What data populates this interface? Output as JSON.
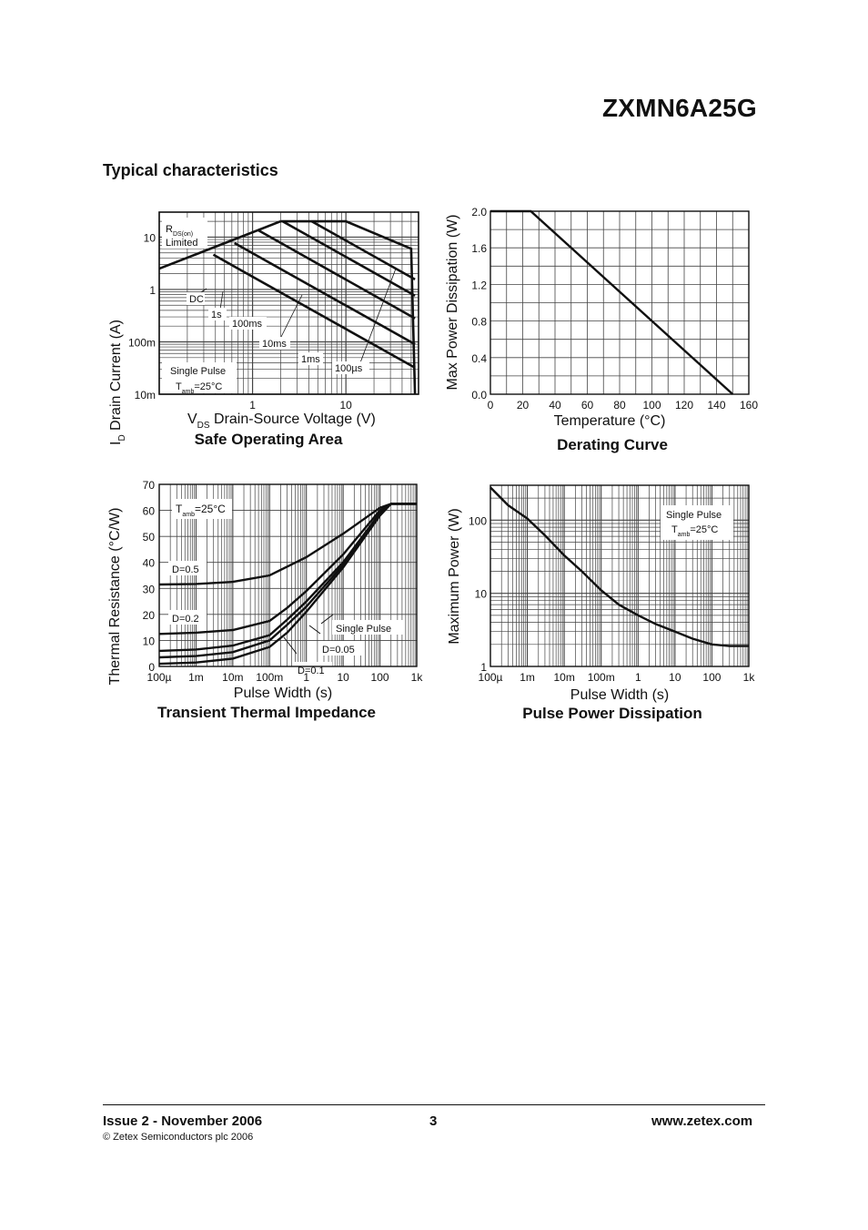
{
  "header": {
    "part_number": "ZXMN6A25G"
  },
  "section_title": "Typical characteristics",
  "charts": {
    "soa": {
      "caption": "Safe Operating Area",
      "y_ticks": [
        "10",
        "1",
        "100m",
        "10m"
      ],
      "x_ticks": [
        "1",
        "10"
      ],
      "xlabel": {
        "main": "V",
        "sub": "DS",
        "rest": " Drain-Source Voltage (V)"
      },
      "ylabel": {
        "main": "I",
        "sub": "D",
        "rest": " Drain Current (A)"
      },
      "rds_label": {
        "main": "R",
        "sub": "DS(on)"
      },
      "limited_label": "Limited",
      "curve_labels": [
        "DC",
        "1s",
        "100ms",
        "10ms",
        "1ms",
        "100µs"
      ],
      "single_pulse": "Single Pulse",
      "tamb": {
        "main": "T",
        "sub": "amb",
        "rest": "=25°C"
      }
    },
    "derating": {
      "caption": "Derating Curve",
      "y_ticks": [
        "2.0",
        "1.6",
        "1.2",
        "0.8",
        "0.4",
        "0.0"
      ],
      "x_ticks": [
        "0",
        "20",
        "40",
        "60",
        "80",
        "100",
        "120",
        "140",
        "160"
      ],
      "xlabel": "Temperature (°C)",
      "ylabel": "Max Power Dissipation (W)"
    },
    "transient": {
      "caption": "Transient Thermal Impedance",
      "y_ticks": [
        "70",
        "60",
        "50",
        "40",
        "30",
        "20",
        "10",
        "0"
      ],
      "x_ticks": [
        "100µ",
        "1m",
        "10m",
        "100m",
        "1",
        "10",
        "100",
        "1k"
      ],
      "xlabel": "Pulse Width (s)",
      "ylabel": "Thermal Resistance (°C/W)",
      "tamb": {
        "main": "T",
        "sub": "amb",
        "rest": "=25°C"
      },
      "curve_labels": [
        "D=0.5",
        "D=0.2",
        "Single Pulse",
        "D=0.05",
        "D=0.1"
      ]
    },
    "pulse": {
      "caption": "Pulse Power Dissipation",
      "y_ticks": [
        "100",
        "10",
        "1"
      ],
      "x_ticks": [
        "100µ",
        "1m",
        "10m",
        "100m",
        "1",
        "10",
        "100",
        "1k"
      ],
      "xlabel": "Pulse Width (s)",
      "ylabel": "Maximum Power (W)",
      "single_pulse": "Single Pulse",
      "tamb": {
        "main": "T",
        "sub": "amb",
        "rest": "=25°C"
      }
    }
  },
  "chart_data": [
    {
      "type": "line",
      "title": "Safe Operating Area",
      "xlabel": "VDS Drain-Source Voltage (V)",
      "ylabel": "ID Drain Current (A)",
      "xscale": "log",
      "yscale": "log",
      "xlim": [
        0.1,
        60
      ],
      "ylim": [
        0.01,
        30
      ],
      "grid": true,
      "series": [
        {
          "name": "RDS(on) Limited",
          "x": [
            0.1,
            2.0
          ],
          "y": [
            2.5,
            20
          ]
        },
        {
          "name": "DC",
          "x": [
            0.38,
            55
          ],
          "y": [
            4.6,
            0.032
          ]
        },
        {
          "name": "1s",
          "x": [
            0.64,
            55
          ],
          "y": [
            7.7,
            0.09
          ]
        },
        {
          "name": "100ms",
          "x": [
            1.15,
            55
          ],
          "y": [
            13.5,
            0.28
          ]
        },
        {
          "name": "10ms",
          "x": [
            2.1,
            55
          ],
          "y": [
            20,
            0.76
          ]
        },
        {
          "name": "1ms",
          "x": [
            4.3,
            55
          ],
          "y": [
            20,
            1.56
          ]
        },
        {
          "name": "100µs",
          "x": [
            2.0,
            10,
            50,
            55
          ],
          "y": [
            20,
            20,
            6,
            0.01
          ]
        }
      ]
    },
    {
      "type": "line",
      "title": "Derating Curve",
      "xlabel": "Temperature (°C)",
      "ylabel": "Max Power Dissipation (W)",
      "xlim": [
        0,
        160
      ],
      "ylim": [
        0,
        2.0
      ],
      "grid": true,
      "series": [
        {
          "x": [
            0,
            25,
            150
          ],
          "y": [
            2.0,
            2.0,
            0.0
          ]
        }
      ]
    },
    {
      "type": "line",
      "title": "Transient Thermal Impedance",
      "xlabel": "Pulse Width (s)",
      "ylabel": "Thermal Resistance (°C/W)",
      "xscale": "log",
      "xlim": [
        0.0001,
        1000
      ],
      "ylim": [
        0,
        70
      ],
      "grid": true,
      "series": [
        {
          "name": "D=0.5",
          "x": [
            0.0001,
            0.001,
            0.01,
            0.1,
            1,
            10,
            100,
            200,
            400,
            1000
          ],
          "y": [
            31.5,
            31.7,
            32.5,
            35,
            42,
            51,
            61,
            62.5,
            62.5,
            62.5
          ]
        },
        {
          "name": "D=0.2",
          "x": [
            0.0001,
            0.001,
            0.01,
            0.1,
            0.3,
            1,
            10,
            100,
            200,
            400,
            1000
          ],
          "y": [
            12.5,
            13,
            14,
            17.5,
            22.5,
            29,
            43,
            60,
            62.5,
            62.5,
            62.5
          ]
        },
        {
          "name": "D=0.1",
          "x": [
            0.0001,
            0.001,
            0.01,
            0.1,
            0.3,
            1,
            10,
            100,
            200,
            400,
            1000
          ],
          "y": [
            6,
            6.5,
            8,
            12,
            18,
            25,
            40,
            59,
            62.5,
            62.5,
            62.5
          ]
        },
        {
          "name": "D=0.05",
          "x": [
            0.0001,
            0.001,
            0.01,
            0.1,
            0.3,
            1,
            10,
            100,
            200,
            400,
            1000
          ],
          "y": [
            3.5,
            4,
            5.5,
            10,
            16,
            23,
            39,
            58.5,
            62.5,
            62.5,
            62.5
          ]
        },
        {
          "name": "Single Pulse",
          "x": [
            0.0001,
            0.001,
            0.01,
            0.1,
            0.3,
            1,
            10,
            100,
            200,
            400,
            1000
          ],
          "y": [
            1,
            1.5,
            3,
            7.5,
            13,
            21,
            38,
            58,
            62.5,
            62.5,
            62.5
          ]
        }
      ]
    },
    {
      "type": "line",
      "title": "Pulse Power Dissipation",
      "xlabel": "Pulse Width (s)",
      "ylabel": "Maximum Power (W)",
      "xscale": "log",
      "yscale": "log",
      "xlim": [
        0.0001,
        1000
      ],
      "ylim": [
        1,
        300
      ],
      "grid": true,
      "series": [
        {
          "name": "Single Pulse",
          "x": [
            0.0001,
            0.0003,
            0.001,
            0.003,
            0.01,
            0.03,
            0.1,
            0.3,
            1,
            3,
            10,
            30,
            100,
            300,
            1000
          ],
          "y": [
            280,
            160,
            105,
            62,
            33,
            20,
            11,
            7,
            5,
            3.8,
            3,
            2.4,
            2,
            1.9,
            1.9
          ]
        }
      ]
    }
  ],
  "footer": {
    "issue": "Issue 2 - November 2006",
    "page_number": "3",
    "website": "www.zetex.com",
    "copyright": "© Zetex Semiconductors plc 2006"
  }
}
